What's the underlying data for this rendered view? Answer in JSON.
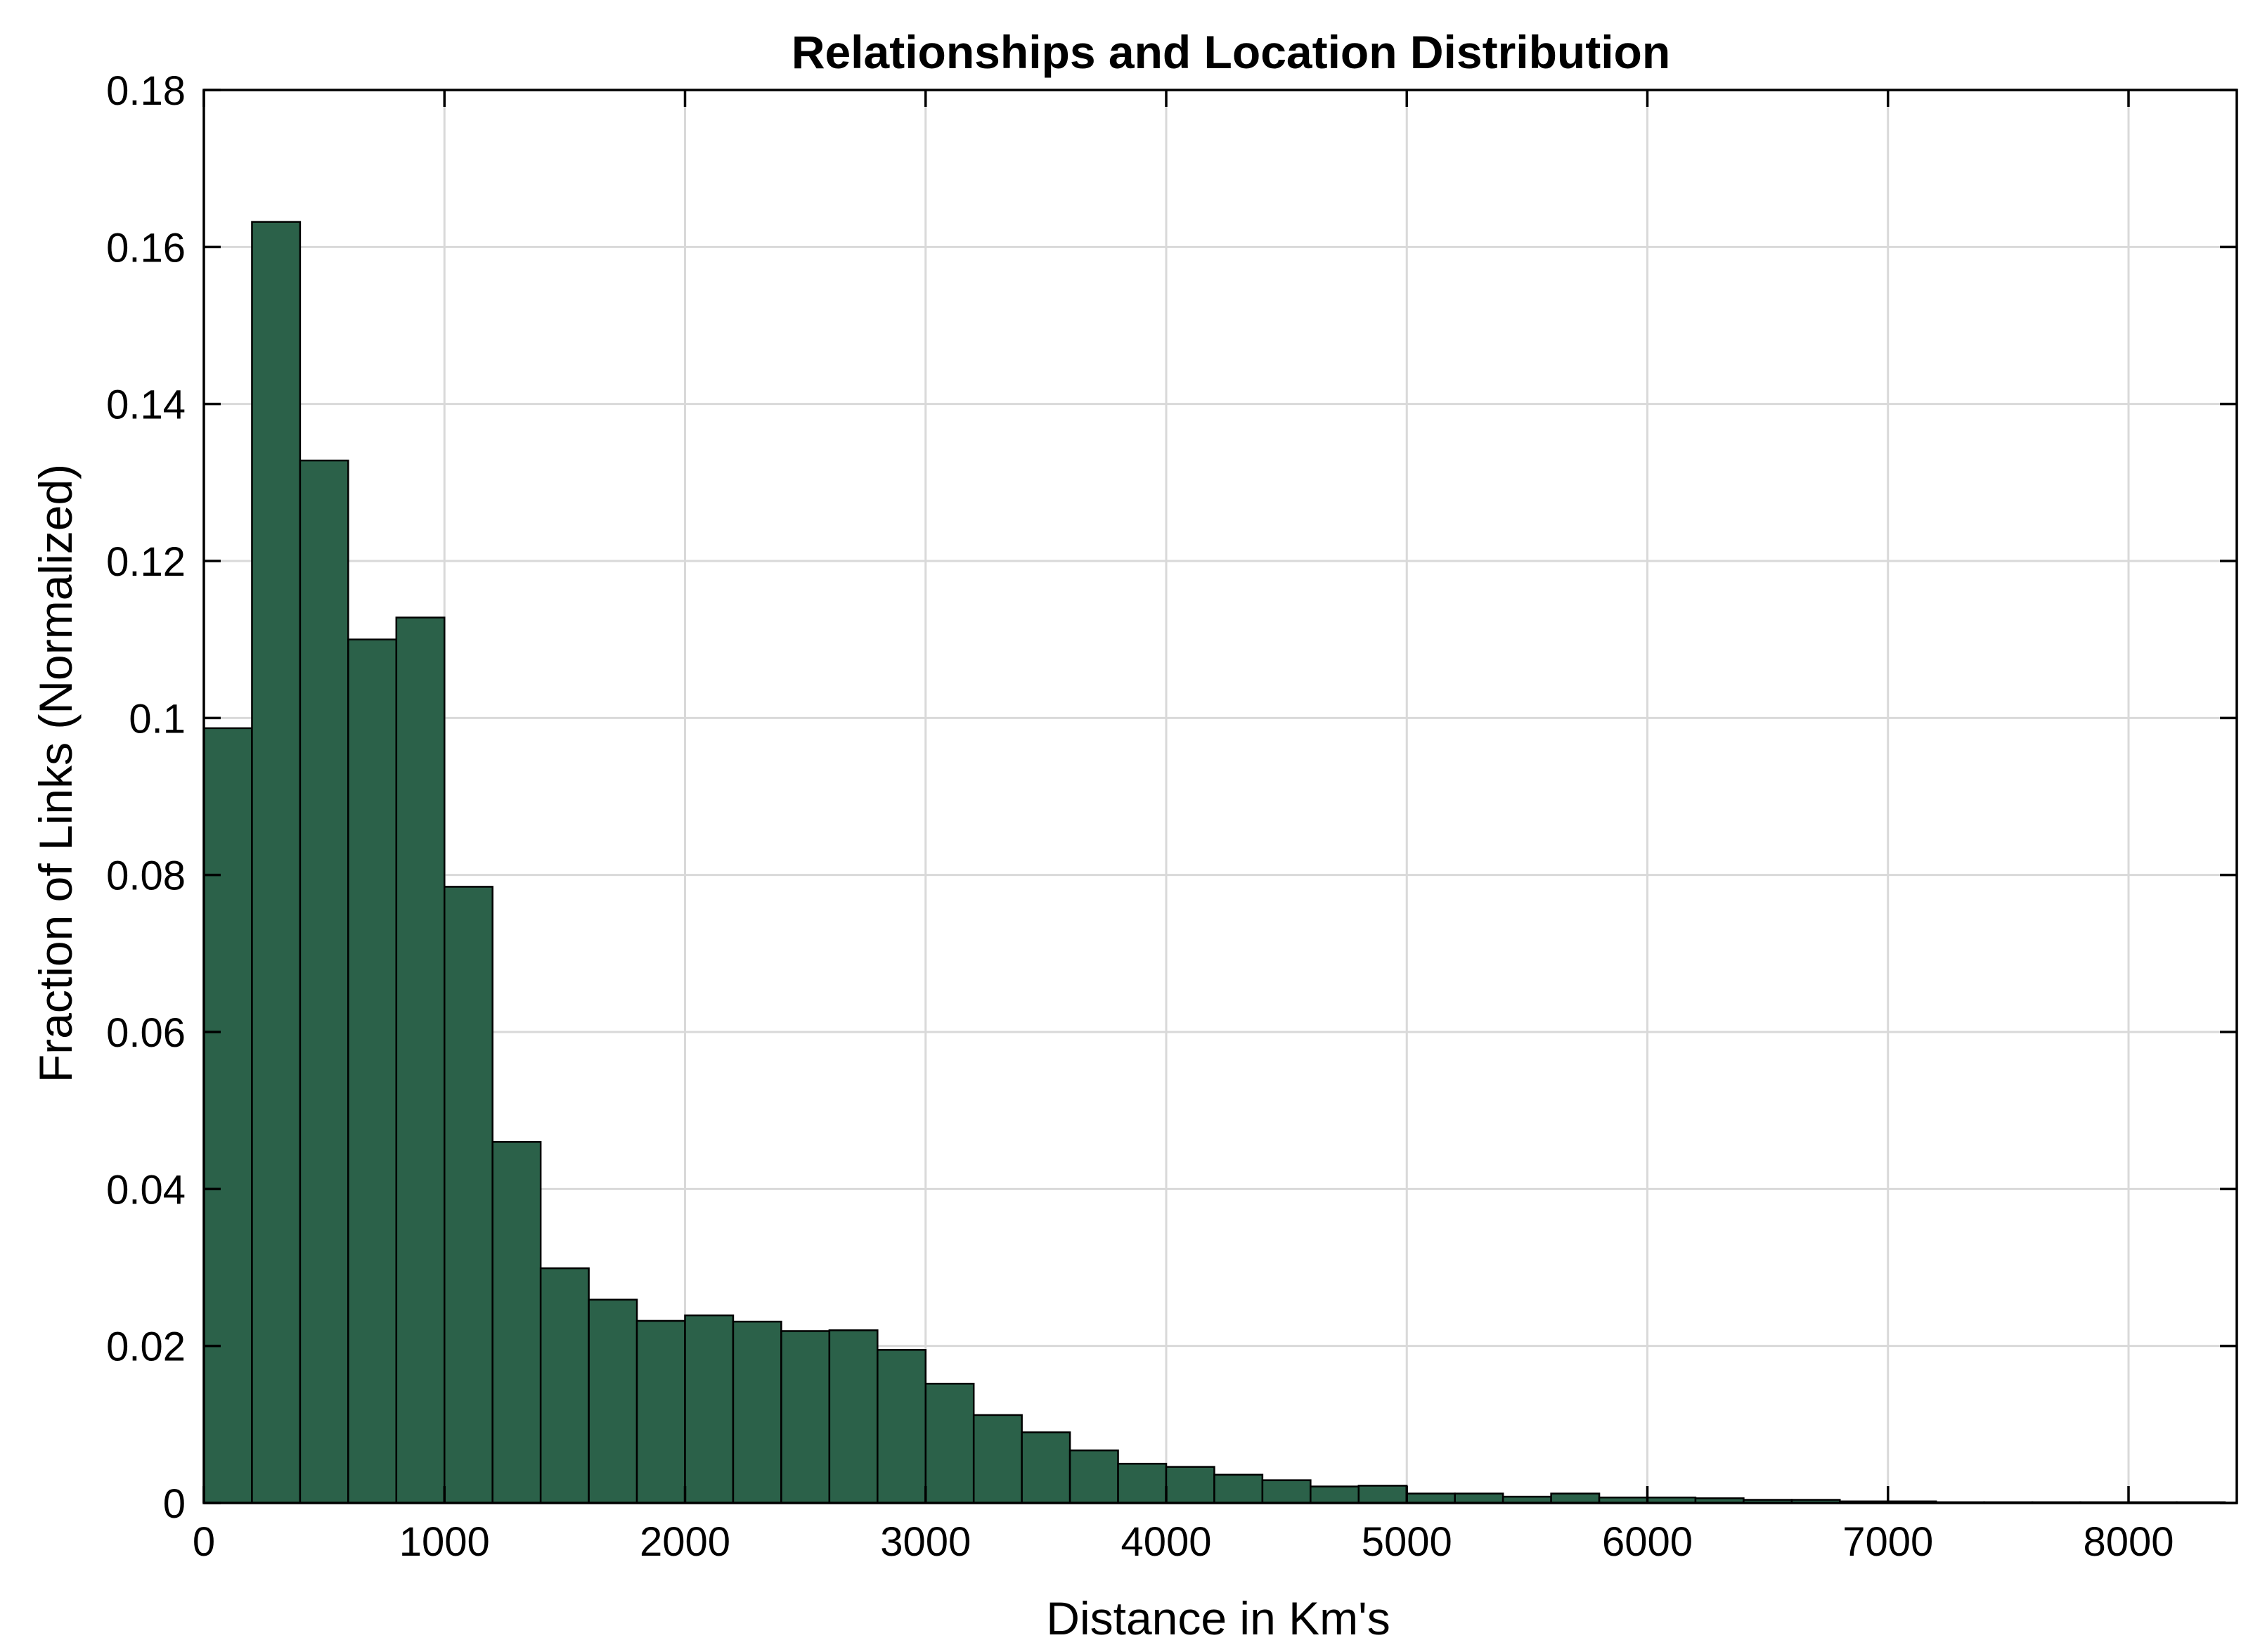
{
  "chart_data": {
    "type": "bar",
    "title": "Relationships and Location Distribution",
    "xlabel": "Distance in Km's",
    "ylabel": "Fraction of Links (Normalized)",
    "xlim": [
      0,
      8450
    ],
    "ylim": [
      0,
      0.18
    ],
    "xticks": [
      0,
      1000,
      2000,
      3000,
      4000,
      5000,
      6000,
      7000,
      8000
    ],
    "xtick_labels": [
      "0",
      "1000",
      "2000",
      "3000",
      "4000",
      "5000",
      "6000",
      "7000",
      "8000"
    ],
    "yticks": [
      0,
      0.02,
      0.04,
      0.06,
      0.08,
      0.1,
      0.12,
      0.14,
      0.16,
      0.18
    ],
    "ytick_labels": [
      "0",
      "0.02",
      "0.04",
      "0.06",
      "0.08",
      "0.1",
      "0.12",
      "0.14",
      "0.16",
      "0.18"
    ],
    "grid": true,
    "bar_color": "#2b6149",
    "bin_width": 200,
    "bin_starts": [
      0,
      200,
      400,
      600,
      800,
      1000,
      1200,
      1400,
      1600,
      1800,
      2000,
      2200,
      2400,
      2600,
      2800,
      3000,
      3200,
      3400,
      3600,
      3800,
      4000,
      4200,
      4400,
      4600,
      4800,
      5000,
      5200,
      5400,
      5600,
      5800,
      6000,
      6200,
      6400,
      6600,
      6800,
      7000,
      7200,
      7400,
      7600,
      7800,
      8000,
      8200
    ],
    "values": [
      0.0987,
      0.1632,
      0.1328,
      0.11,
      0.1128,
      0.0785,
      0.046,
      0.0299,
      0.0259,
      0.0232,
      0.0239,
      0.0231,
      0.0219,
      0.022,
      0.0195,
      0.0152,
      0.0112,
      0.009,
      0.0067,
      0.005,
      0.0046,
      0.0036,
      0.0029,
      0.0021,
      0.0022,
      0.0012,
      0.0012,
      0.0008,
      0.0012,
      0.0007,
      0.0007,
      0.0006,
      0.0004,
      0.0004,
      0.0002,
      0.0002,
      0.0001,
      0.0001,
      0.0001,
      0.0001,
      0.0001,
      0.0001
    ]
  }
}
